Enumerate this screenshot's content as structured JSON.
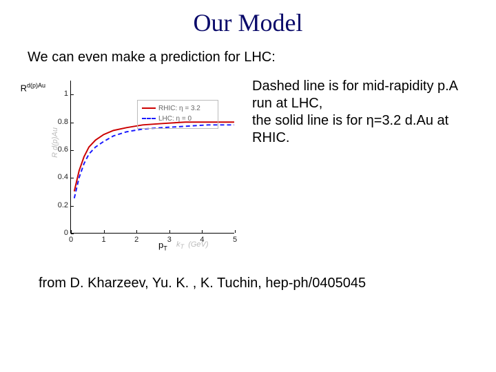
{
  "title": "Our Model",
  "subtitle": "We can even make a prediction for LHC:",
  "yaxis_symbol_html": "R<sup>d(p)Au</sup>",
  "side_text_html": "Dashed line is for mid-rapidity p.A run at LHC,<br>the solid line is for η=3.2 d.Au at RHIC.",
  "citation": "from D. Kharzeev, Yu. K. , K. Tuchin, hep-ph/0405045",
  "xaxis_symbol_html": "p<sub>T</sub>",
  "xaxis_faint_html": "k<sub>T</sub> &nbsp;(GeV)",
  "yaxis_faint": "R d(p)Au",
  "chart": {
    "type": "line",
    "xlim": [
      0,
      5
    ],
    "ylim": [
      0,
      1.1
    ],
    "xticks": [
      0,
      1,
      2,
      3,
      4,
      5
    ],
    "yticks": [
      0,
      0.2,
      0.4,
      0.6,
      0.8,
      1
    ],
    "background_color": "#ffffff",
    "axis_color": "#000000",
    "tick_fontsize": 11,
    "legend": {
      "border_color": "#bbbbbb",
      "entries": [
        {
          "style": "solid",
          "color": "#cc0000",
          "label": "RHIC: η = 3.2"
        },
        {
          "style": "dashed",
          "color": "#1a1aff",
          "label": "LHC: η = 0"
        }
      ]
    },
    "series": [
      {
        "name": "RHIC η=3.2",
        "style": "solid",
        "color": "#cc0000",
        "line_width": 2,
        "x": [
          0.1,
          0.25,
          0.4,
          0.55,
          0.75,
          1.0,
          1.3,
          1.7,
          2.2,
          2.8,
          3.5,
          4.2,
          5.0
        ],
        "y": [
          0.3,
          0.45,
          0.55,
          0.62,
          0.67,
          0.71,
          0.74,
          0.76,
          0.78,
          0.79,
          0.8,
          0.8,
          0.8
        ]
      },
      {
        "name": "LHC η=0",
        "style": "dashed",
        "color": "#1a1aff",
        "line_width": 2,
        "dash": "6,4",
        "x": [
          0.1,
          0.25,
          0.4,
          0.55,
          0.75,
          1.0,
          1.3,
          1.7,
          2.2,
          2.8,
          3.5,
          4.2,
          5.0
        ],
        "y": [
          0.25,
          0.4,
          0.5,
          0.57,
          0.62,
          0.66,
          0.7,
          0.73,
          0.75,
          0.76,
          0.77,
          0.78,
          0.78
        ]
      }
    ]
  }
}
